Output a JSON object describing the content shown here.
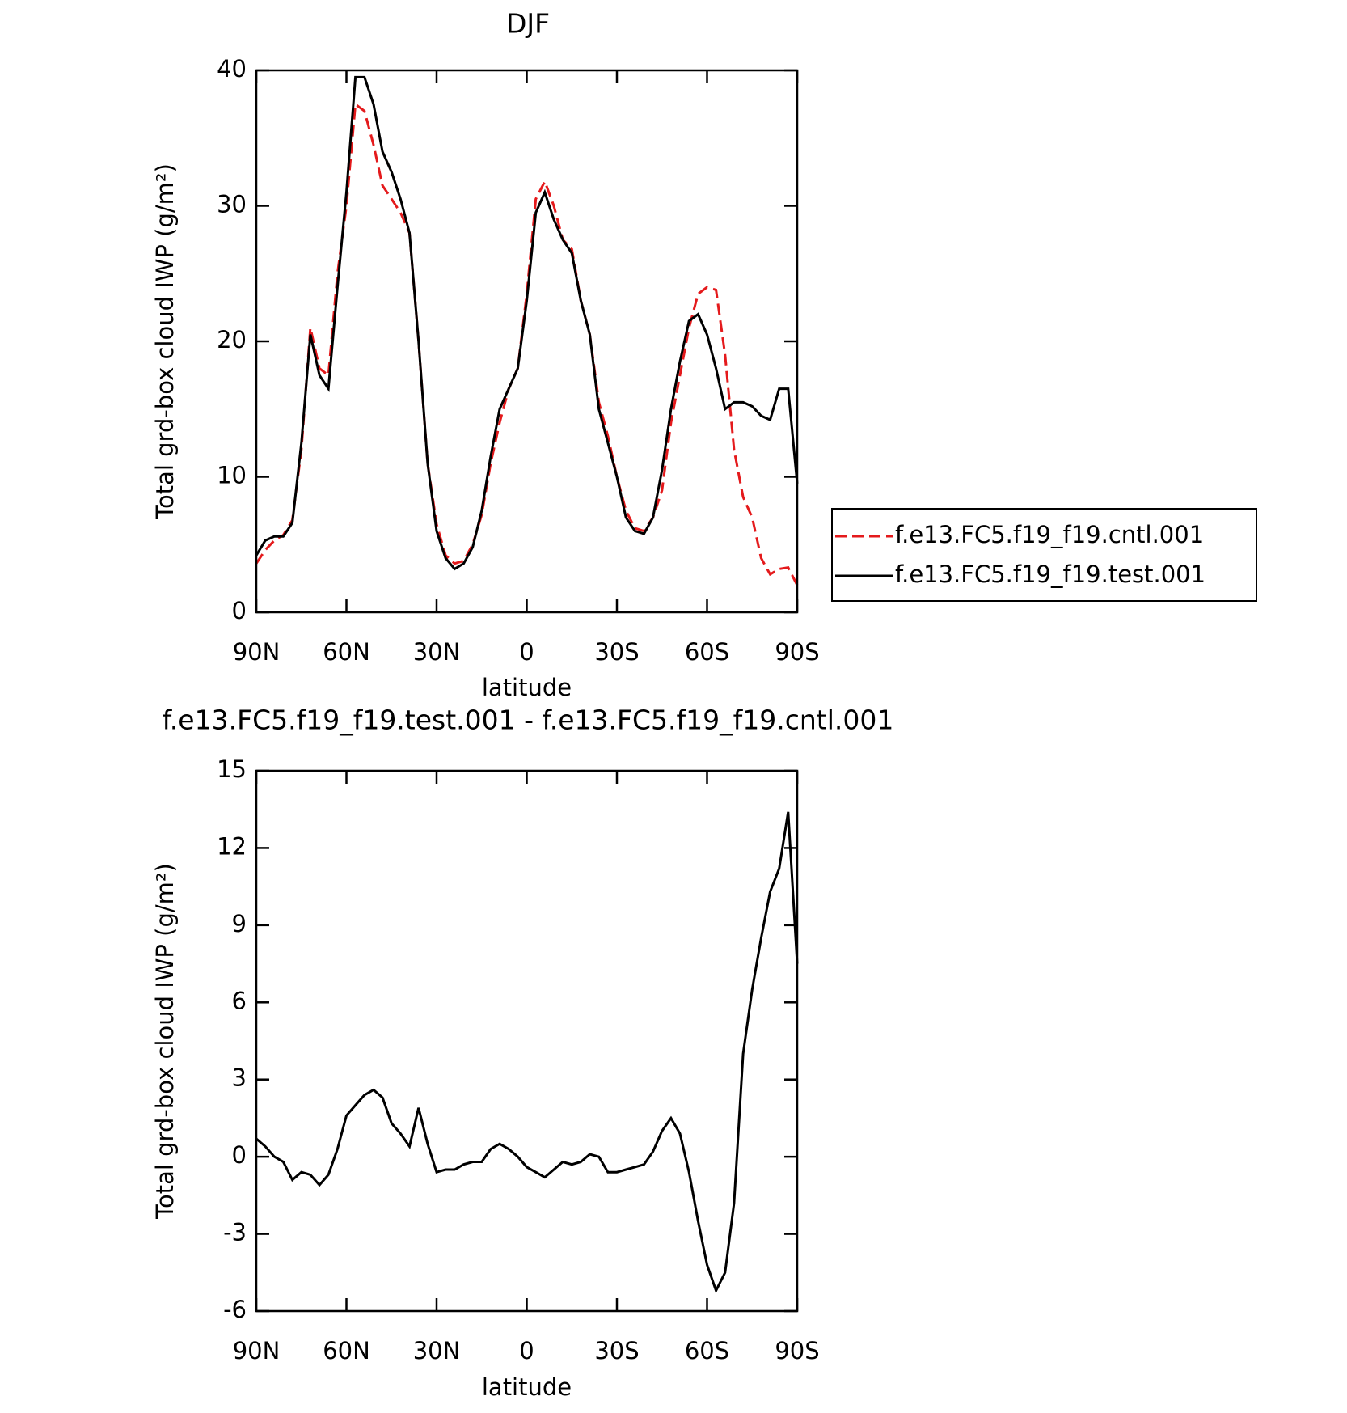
{
  "chart_data": [
    {
      "type": "line",
      "title": "DJF",
      "xlabel": "latitude",
      "ylabel": "Total grd-box cloud IWP (g/m²)",
      "x": [
        90,
        87,
        84,
        81,
        78,
        75,
        72,
        69,
        66,
        63,
        60,
        57,
        54,
        51,
        48,
        45,
        42,
        39,
        36,
        33,
        30,
        27,
        24,
        21,
        18,
        15,
        12,
        9,
        6,
        3,
        0,
        -3,
        -6,
        -9,
        -12,
        -15,
        -18,
        -21,
        -24,
        -27,
        -30,
        -33,
        -36,
        -39,
        -42,
        -45,
        -48,
        -51,
        -54,
        -57,
        -60,
        -63,
        -66,
        -69,
        -72,
        -75,
        -78,
        -81,
        -84,
        -87,
        -90
      ],
      "series": [
        {
          "name": "f.e13.FC5.f19_f19.cntl.001",
          "color": "#e41a1c",
          "linestyle": "dashed",
          "values": [
            3.6,
            4.6,
            5.3,
            5.7,
            6.8,
            12,
            21,
            18,
            17.5,
            25,
            30,
            37.5,
            37,
            34.5,
            31.5,
            30.5,
            29.5,
            28,
            20,
            11,
            6.5,
            4.2,
            3.6,
            3.8,
            5,
            7.2,
            11,
            14,
            16.5,
            18,
            23.5,
            30.5,
            31.8,
            30,
            27.5,
            26.8,
            23,
            20.5,
            15.5,
            13,
            10,
            7.5,
            6.2,
            6,
            7,
            9,
            14,
            17.5,
            21,
            23.5,
            24,
            23.8,
            19,
            12,
            8.5,
            7,
            4,
            2.8,
            3.2,
            3.3,
            2
          ]
        },
        {
          "name": "f.e13.FC5.f19_f19.test.001",
          "color": "#000000",
          "linestyle": "solid",
          "values": [
            4.2,
            5.3,
            5.6,
            5.6,
            6.6,
            12.5,
            20.5,
            17.5,
            16.5,
            24,
            31,
            39.5,
            39.5,
            37.5,
            34,
            32.5,
            30.5,
            28,
            20,
            11,
            6,
            4,
            3.2,
            3.6,
            4.8,
            7.5,
            11.5,
            15,
            16.5,
            18,
            23,
            29.5,
            31,
            29,
            27.5,
            26.5,
            23,
            20.5,
            15,
            12.5,
            10,
            7,
            6,
            5.8,
            7,
            10.5,
            15,
            18.5,
            21.5,
            22,
            20.5,
            18,
            15,
            15.5,
            15.5,
            15.2,
            14.5,
            14.2,
            16.5,
            16.5,
            9.5
          ]
        }
      ],
      "xlim": [
        90,
        -90
      ],
      "xticks": [
        {
          "value": 90,
          "label": "90N"
        },
        {
          "value": 60,
          "label": "60N"
        },
        {
          "value": 30,
          "label": "30N"
        },
        0,
        {
          "value": -30,
          "label": "30S"
        },
        {
          "value": -60,
          "label": "60S"
        },
        {
          "value": -90,
          "label": "90S"
        }
      ],
      "ylim": [
        0,
        40
      ],
      "yticks": [
        0,
        10,
        20,
        30,
        40
      ],
      "legend": "right"
    },
    {
      "type": "line",
      "title": "f.e13.FC5.f19_f19.test.001 - f.e13.FC5.f19_f19.cntl.001",
      "xlabel": "latitude",
      "ylabel": "Total grd-box cloud IWP (g/m²)",
      "x": [
        90,
        87,
        84,
        81,
        78,
        75,
        72,
        69,
        66,
        63,
        60,
        57,
        54,
        51,
        48,
        45,
        42,
        39,
        36,
        33,
        30,
        27,
        24,
        21,
        18,
        15,
        12,
        9,
        6,
        3,
        0,
        -3,
        -6,
        -9,
        -12,
        -15,
        -18,
        -21,
        -24,
        -27,
        -30,
        -33,
        -36,
        -39,
        -42,
        -45,
        -48,
        -51,
        -54,
        -57,
        -60,
        -63,
        -66,
        -69,
        -72,
        -75,
        -78,
        -81,
        -84,
        -87,
        -90
      ],
      "series": [
        {
          "color": "#000000",
          "linestyle": "solid",
          "values": [
            0.7,
            0.4,
            0,
            -0.2,
            -0.9,
            -0.6,
            -0.7,
            -1.1,
            -0.7,
            0.3,
            1.6,
            2,
            2.4,
            2.6,
            2.3,
            1.3,
            0.9,
            0.4,
            1.9,
            0.5,
            -0.6,
            -0.5,
            -0.5,
            -0.3,
            -0.2,
            -0.2,
            0.3,
            0.5,
            0.3,
            0,
            -0.4,
            -0.6,
            -0.8,
            -0.5,
            -0.2,
            -0.3,
            -0.2,
            0.1,
            0,
            -0.6,
            -0.6,
            -0.5,
            -0.4,
            -0.3,
            0.2,
            1,
            1.5,
            0.9,
            -0.6,
            -2.5,
            -4.2,
            -5.2,
            -4.5,
            -1.8,
            4,
            6.5,
            8.5,
            10.3,
            11.2,
            13.4,
            7.5
          ]
        }
      ],
      "xlim": [
        90,
        -90
      ],
      "xticks": [
        {
          "value": 90,
          "label": "90N"
        },
        {
          "value": 60,
          "label": "60N"
        },
        {
          "value": 30,
          "label": "30N"
        },
        0,
        {
          "value": -30,
          "label": "30S"
        },
        {
          "value": -60,
          "label": "60S"
        },
        {
          "value": -90,
          "label": "90S"
        }
      ],
      "ylim": [
        -6,
        15
      ],
      "yticks": [
        -6,
        -3,
        0,
        3,
        6,
        9,
        12,
        15
      ]
    }
  ]
}
